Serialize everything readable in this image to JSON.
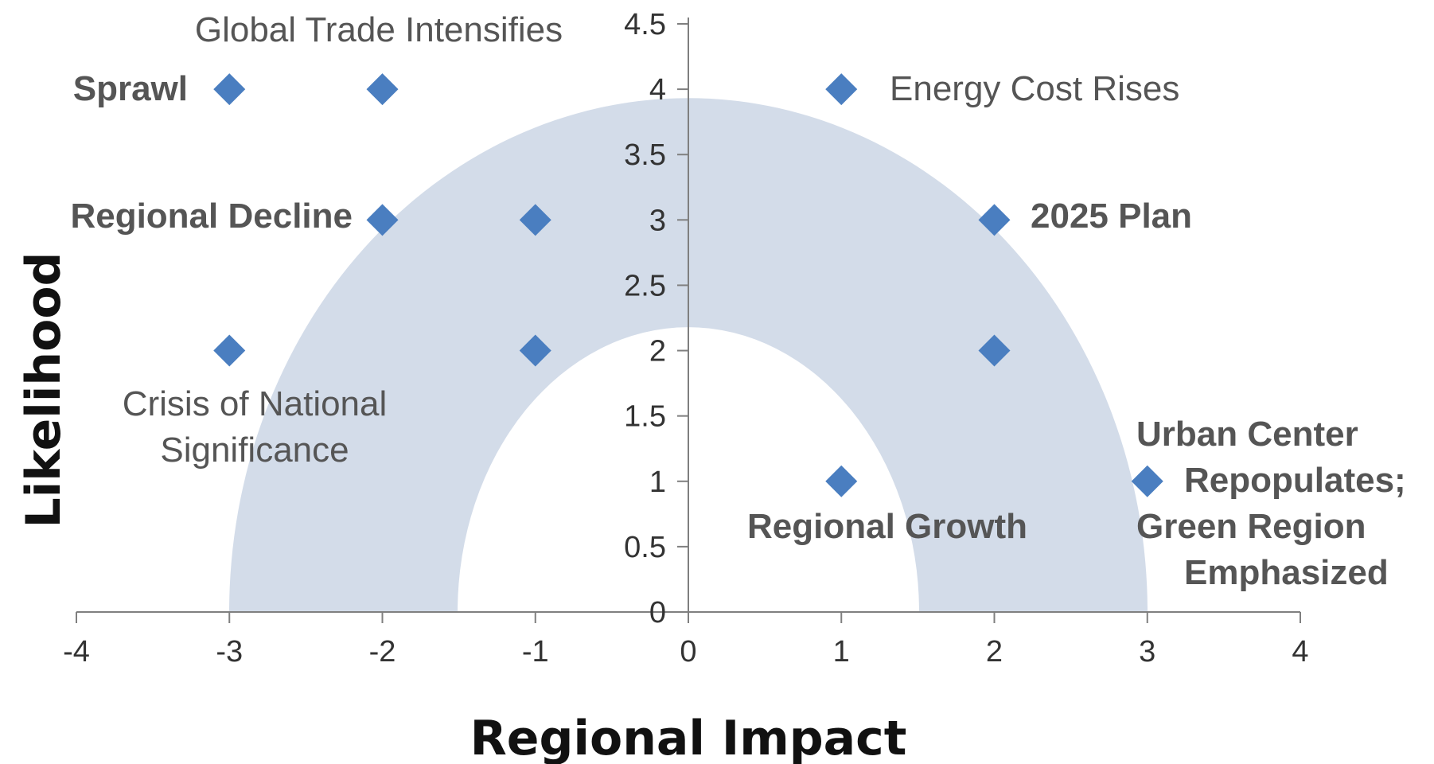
{
  "chart_data": {
    "type": "scatter",
    "xlabel": "Regional Impact",
    "ylabel": "Likelihood",
    "xlim": [
      -4,
      4
    ],
    "ylim": [
      0,
      4.5
    ],
    "x_ticks": [
      "-4",
      "-3",
      "-2",
      "-1",
      "0",
      "1",
      "2",
      "3",
      "4"
    ],
    "y_ticks": [
      "0",
      "0.5",
      "1",
      "1.5",
      "2",
      "2.5",
      "3",
      "3.5",
      "4",
      "4.5"
    ],
    "grid": false,
    "marker_color": "#4a7ec0",
    "band_color": "#d3dce9",
    "label_color": "#555555",
    "points": [
      {
        "x": -3,
        "y": 4
      },
      {
        "x": -2,
        "y": 4
      },
      {
        "x": 1,
        "y": 4
      },
      {
        "x": -2,
        "y": 3
      },
      {
        "x": -1,
        "y": 3
      },
      {
        "x": 2,
        "y": 3
      },
      {
        "x": -3,
        "y": 2
      },
      {
        "x": -1,
        "y": 2
      },
      {
        "x": 2,
        "y": 2
      },
      {
        "x": 1,
        "y": 1
      },
      {
        "x": 3,
        "y": 1
      }
    ],
    "annotations": [
      {
        "lines": [
          "Global Trade Intensifies"
        ],
        "bold": false
      },
      {
        "lines": [
          "Sprawl"
        ],
        "bold": true
      },
      {
        "lines": [
          "Energy Cost Rises"
        ],
        "bold": false
      },
      {
        "lines": [
          "Regional Decline"
        ],
        "bold": true
      },
      {
        "lines": [
          "2025 Plan"
        ],
        "bold": true
      },
      {
        "lines": [
          "Crisis of National",
          "Significance"
        ],
        "bold": false
      },
      {
        "lines": [
          "Regional Growth"
        ],
        "bold": true
      },
      {
        "lines": [
          "Urban Center",
          "Repopulates;",
          "Green Region",
          "Emphasized"
        ],
        "bold": true
      }
    ]
  }
}
